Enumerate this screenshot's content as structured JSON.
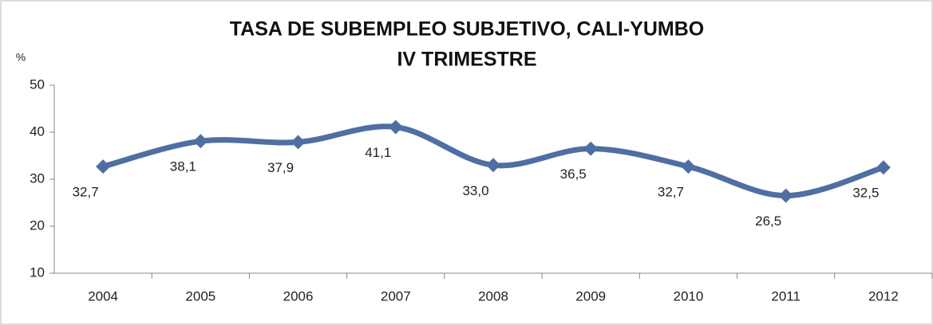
{
  "chart_data": {
    "type": "line",
    "title": "TASA DE SUBEMPLEO SUBJETIVO, CALI-YUMBO",
    "subtitle": "IV TRIMESTRE",
    "y_label": "%",
    "categories": [
      "2004",
      "2005",
      "2006",
      "2007",
      "2008",
      "2009",
      "2010",
      "2011",
      "2012"
    ],
    "series": [
      {
        "name": "Tasa de subempleo subjetivo",
        "color": "#4f6fa3",
        "values": [
          32.7,
          38.1,
          37.9,
          41.1,
          33.0,
          36.5,
          32.7,
          26.5,
          32.5
        ],
        "value_labels": [
          "32,7",
          "38,1",
          "37,9",
          "41,1",
          "33,0",
          "36,5",
          "32,7",
          "26,5",
          "32,5"
        ]
      }
    ],
    "ylim": [
      10,
      50
    ],
    "yticks": [
      10,
      20,
      30,
      40,
      50
    ],
    "smooth": true,
    "legend": false,
    "grid": false
  }
}
